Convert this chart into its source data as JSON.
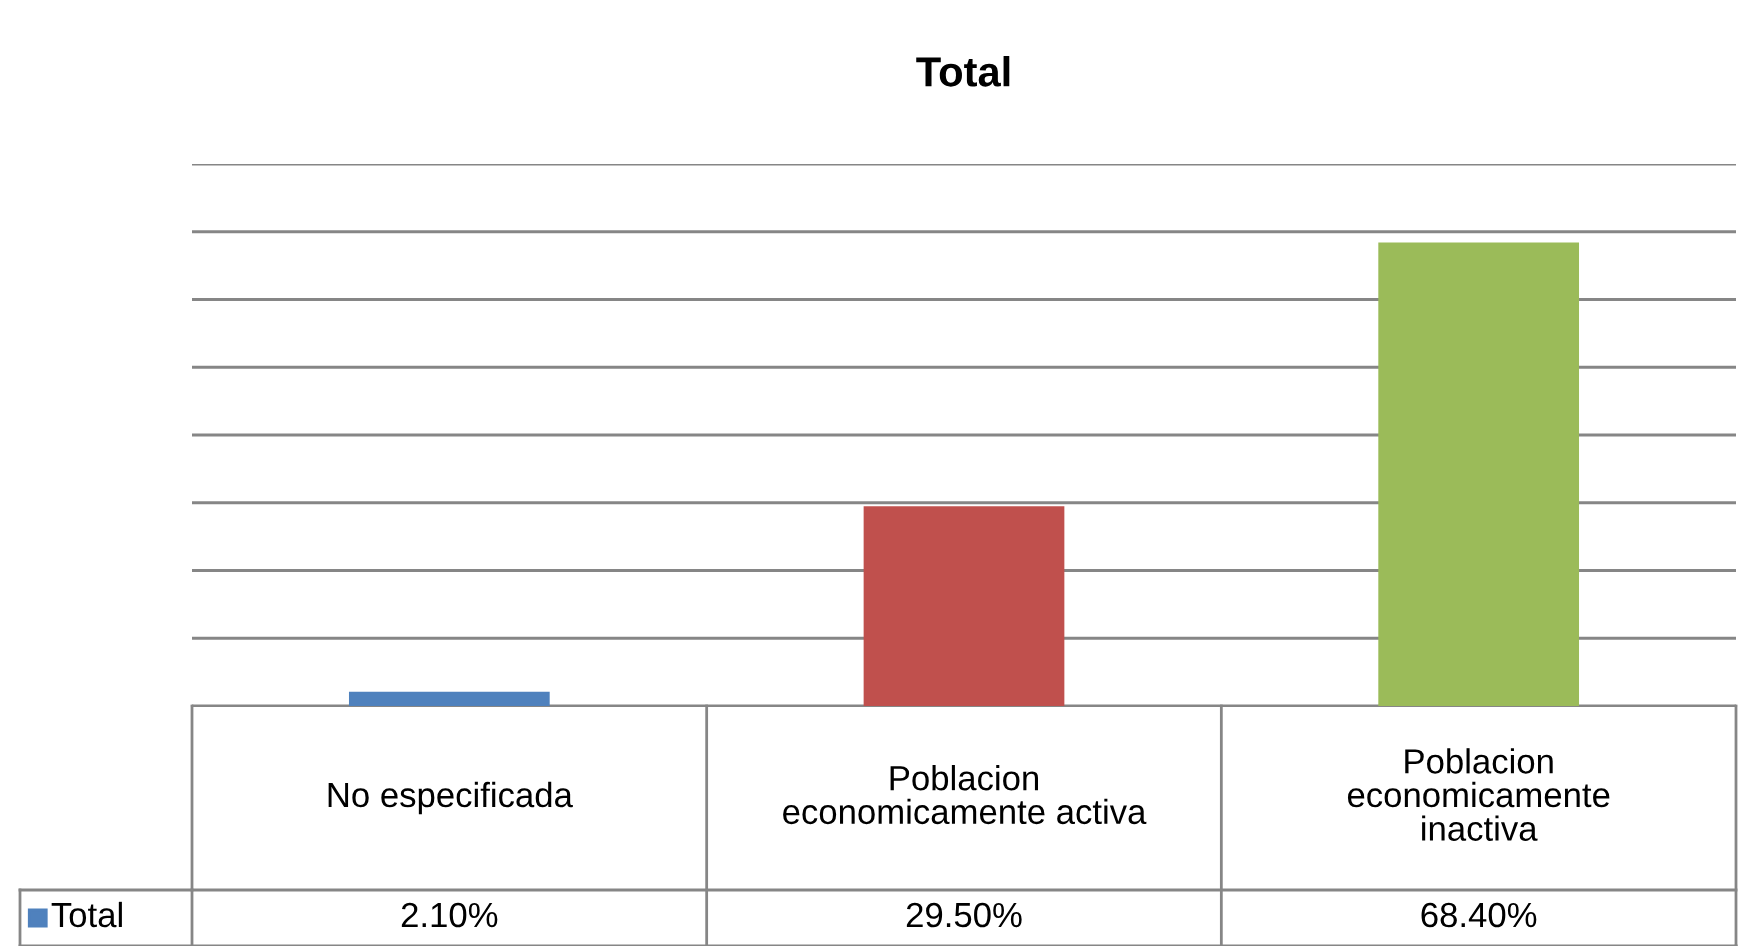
{
  "chart_data": {
    "type": "bar",
    "title": "Total",
    "categories": [
      "No especificada",
      "Poblacion economicamente activa",
      "Poblacion economicamente inactiva"
    ],
    "series": [
      {
        "name": "Total",
        "color": "#4f81bd",
        "colors": [
          "#4f81bd",
          "#c0504d",
          "#9bbb59"
        ],
        "values": [
          2.1,
          29.5,
          68.4
        ],
        "value_labels": [
          "2.10%",
          "29.50%",
          "68.40%"
        ]
      }
    ],
    "ylim": [
      0,
      80
    ],
    "yticks": [
      {
        "value": 0,
        "label": null
      },
      {
        "value": 10,
        "label": null
      },
      {
        "value": 20,
        "label": null
      },
      {
        "value": 30,
        "label": null
      },
      {
        "value": 40,
        "label": null
      },
      {
        "value": 50,
        "label": null
      },
      {
        "value": 60,
        "label": null
      },
      {
        "value": 70,
        "label": null
      },
      {
        "value": 80,
        "label": null
      }
    ],
    "grid": "y"
  }
}
